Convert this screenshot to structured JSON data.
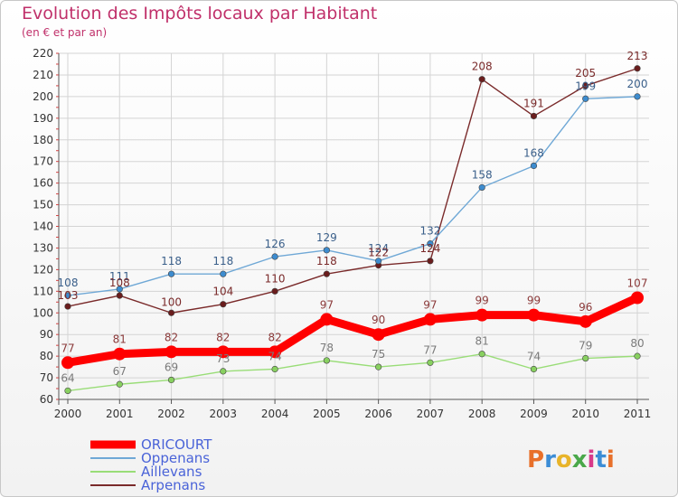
{
  "title": "Evolution des Impôts locaux par Habitant",
  "subtitle": "(en € et par an)",
  "logo": "Proxiti",
  "chart_data": {
    "type": "line",
    "title": "Evolution des Impôts locaux par Habitant",
    "subtitle": "(en € et par an)",
    "xlabel": "",
    "ylabel": "",
    "ylim": [
      60,
      220
    ],
    "yticks": [
      60,
      70,
      80,
      90,
      100,
      110,
      120,
      130,
      140,
      150,
      160,
      170,
      180,
      190,
      200,
      210,
      220
    ],
    "grid": true,
    "legend_position": "bottom-left",
    "categories": [
      "2000",
      "2001",
      "2002",
      "2003",
      "2004",
      "2005",
      "2006",
      "2007",
      "2008",
      "2009",
      "2010",
      "2011"
    ],
    "series": [
      {
        "name": "ORICOURT",
        "color": "#ff0000",
        "values": [
          77,
          81,
          82,
          82,
          82,
          97,
          90,
          97,
          99,
          99,
          96,
          107
        ]
      },
      {
        "name": "Oppenans",
        "color": "#6fa8d6",
        "values": [
          108,
          111,
          118,
          118,
          126,
          129,
          124,
          132,
          158,
          168,
          199,
          200
        ]
      },
      {
        "name": "Aillevans",
        "color": "#99dd77",
        "values": [
          64,
          67,
          69,
          73,
          74,
          78,
          75,
          77,
          81,
          74,
          79,
          80
        ]
      },
      {
        "name": "Arpenans",
        "color": "#7a2a2a",
        "values": [
          103,
          108,
          100,
          104,
          110,
          118,
          122,
          124,
          208,
          191,
          205,
          213
        ]
      }
    ]
  }
}
